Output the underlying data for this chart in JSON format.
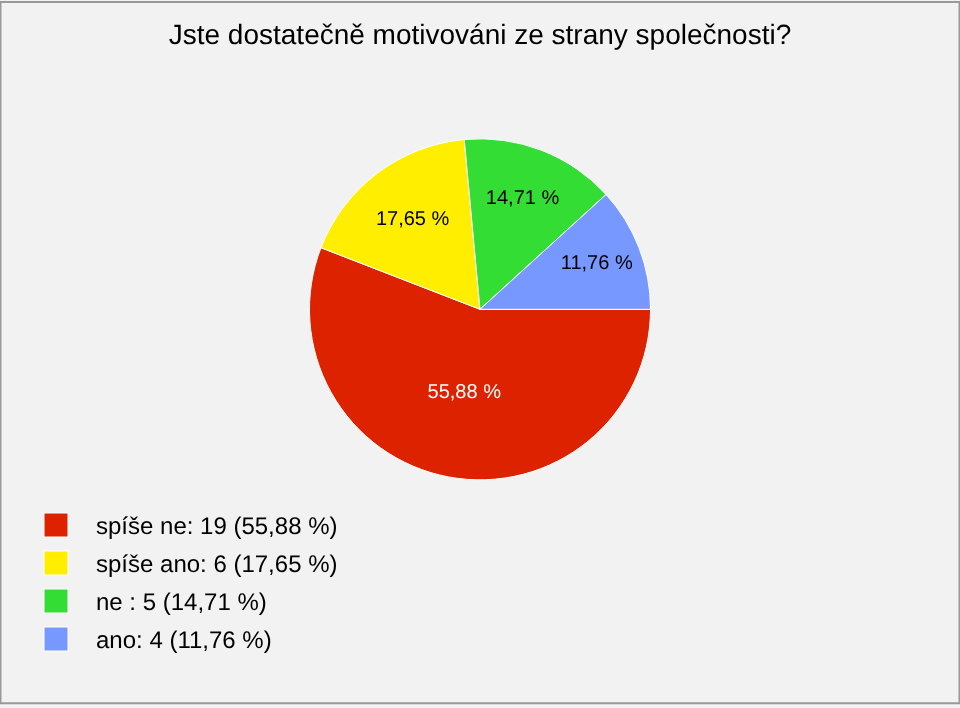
{
  "chart_data": {
    "type": "pie",
    "title": "Jste dostatečně motivováni ze strany společnosti?",
    "categories": [
      "spíše ne: 19 (55,88 %)",
      "spíše ano: 6 (17,65 %)",
      "ne : 5 (14,71 %)",
      "ano: 4 (11,76 %)"
    ],
    "values": [
      55.88,
      17.65,
      14.71,
      11.76
    ],
    "colors": [
      "#dd2200",
      "#ffee00",
      "#33dd33",
      "#7799ff"
    ],
    "value_labels": [
      "55,88 %",
      "17,65 %",
      "14,71 %",
      "11,76 %"
    ],
    "legend": "bottom left"
  }
}
